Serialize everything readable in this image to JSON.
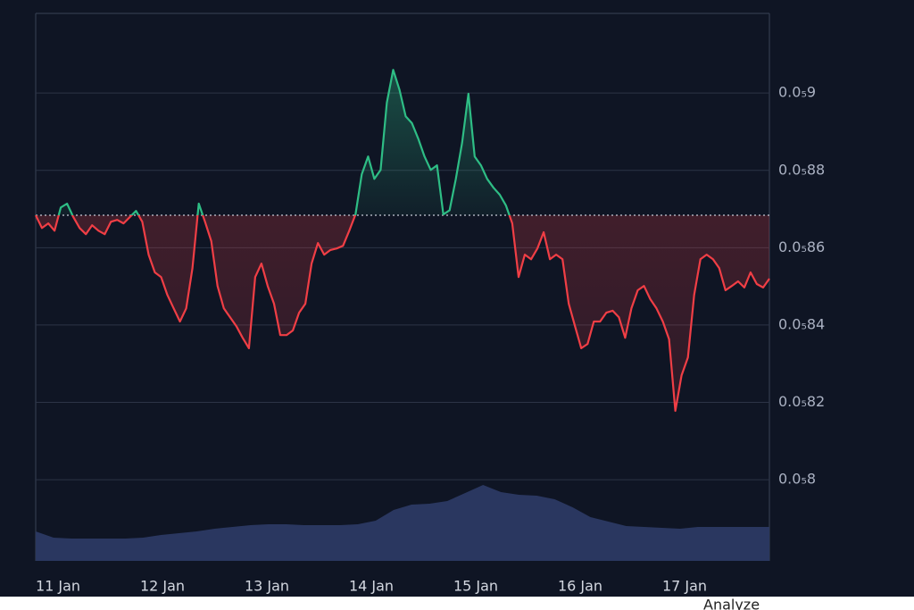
{
  "chart_data": {
    "type": "baseline",
    "baseline": 8.684e-06,
    "ylim": [
      7.79e-06,
      9.206e-06
    ],
    "yticks": [
      {
        "value": 9e-06,
        "label": "0.0₅9"
      },
      {
        "value": 8.8e-06,
        "label": "0.0₅88"
      },
      {
        "value": 8.6e-06,
        "label": "0.0₅86"
      },
      {
        "value": 8.4e-06,
        "label": "0.0₅84"
      },
      {
        "value": 8.2e-06,
        "label": "0.0₅82"
      },
      {
        "value": 8e-06,
        "label": "0.0₅8"
      }
    ],
    "xticks": [
      "11 Jan",
      "12 Jan",
      "13 Jan",
      "14 Jan",
      "15 Jan",
      "16 Jan",
      "17 Jan"
    ],
    "grid": true,
    "up_color": "#2ebd85",
    "down_color": "#f03e45",
    "series": [
      {
        "values": [
          8.684e-06,
          8.651e-06,
          8.663e-06,
          8.644e-06,
          8.704e-06,
          8.714e-06,
          8.679e-06,
          8.651e-06,
          8.635e-06,
          8.658e-06,
          8.644e-06,
          8.635e-06,
          8.667e-06,
          8.672e-06,
          8.663e-06,
          8.679e-06,
          8.695e-06,
          8.667e-06,
          8.582e-06,
          8.536e-06,
          8.524e-06,
          8.478e-06,
          8.443e-06,
          8.409e-06,
          8.443e-06,
          8.547e-06,
          8.714e-06,
          8.667e-06,
          8.617e-06,
          8.501e-06,
          8.443e-06,
          8.42e-06,
          8.397e-06,
          8.367e-06,
          8.34e-06,
          8.524e-06,
          8.559e-06,
          8.501e-06,
          8.455e-06,
          8.374e-06,
          8.374e-06,
          8.386e-06,
          8.432e-06,
          8.455e-06,
          8.559e-06,
          8.612e-06,
          8.582e-06,
          8.594e-06,
          8.598e-06,
          8.605e-06,
          8.644e-06,
          8.686e-06,
          8.79e-06,
          8.836e-06,
          8.778e-06,
          8.801e-06,
          8.975e-06,
          9.06e-06,
          9.009e-06,
          8.94e-06,
          8.922e-06,
          8.882e-06,
          8.836e-06,
          8.801e-06,
          8.813e-06,
          8.686e-06,
          8.697e-06,
          8.778e-06,
          8.871e-06,
          8.998e-06,
          8.836e-06,
          8.813e-06,
          8.778e-06,
          8.755e-06,
          8.737e-06,
          8.709e-06,
          8.663e-06,
          8.524e-06,
          8.582e-06,
          8.57e-06,
          8.598e-06,
          8.64e-06,
          8.57e-06,
          8.582e-06,
          8.57e-06,
          8.455e-06,
          8.397e-06,
          8.34e-06,
          8.351e-06,
          8.409e-06,
          8.409e-06,
          8.432e-06,
          8.437e-06,
          8.42e-06,
          8.367e-06,
          8.443e-06,
          8.49e-06,
          8.501e-06,
          8.467e-06,
          8.443e-06,
          8.409e-06,
          8.363e-06,
          8.178e-06,
          8.27e-06,
          8.316e-06,
          8.478e-06,
          8.57e-06,
          8.582e-06,
          8.57e-06,
          8.547e-06,
          8.49e-06,
          8.501e-06,
          8.513e-06,
          8.497e-06,
          8.536e-06,
          8.506e-06,
          8.497e-06,
          8.52e-06
        ]
      },
      {
        "axis": "y2",
        "color": "#2a3760",
        "values": [
          33,
          26,
          25,
          25,
          25,
          25,
          26,
          29,
          31,
          33,
          36,
          38,
          40,
          41,
          41,
          40,
          40,
          40,
          41,
          45,
          57,
          63,
          64,
          67,
          76,
          85,
          77,
          74,
          73,
          69,
          60,
          49,
          44,
          39,
          38,
          37,
          36,
          38,
          38,
          38,
          38,
          38
        ]
      }
    ],
    "y2lim": [
      0,
      613
    ],
    "footer_text": "Analyze"
  }
}
